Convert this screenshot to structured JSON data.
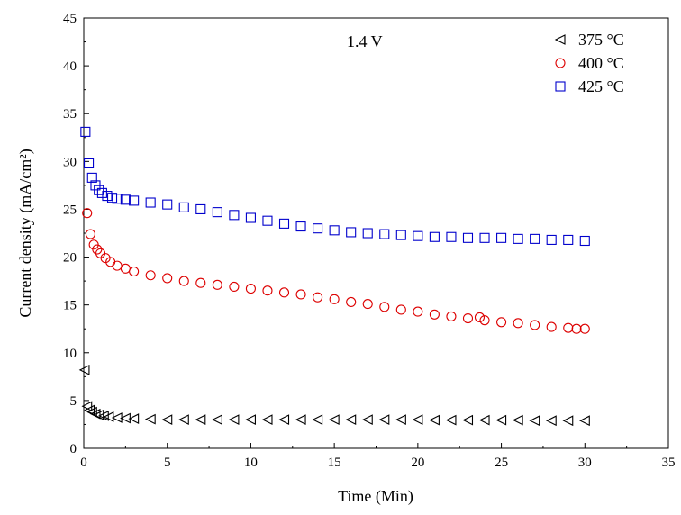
{
  "chart_data": {
    "type": "scatter",
    "title": "",
    "annotation": "1.4 V",
    "xlabel": "Time (Min)",
    "ylabel": "Current density (mA/cm²)",
    "xlim": [
      0,
      35
    ],
    "ylim": [
      0,
      45
    ],
    "x_ticks": [
      0,
      5,
      10,
      15,
      20,
      25,
      30,
      35
    ],
    "y_ticks": [
      0,
      5,
      10,
      15,
      20,
      25,
      30,
      35,
      40,
      45
    ],
    "grid": false,
    "legend_position": "top-right",
    "series": [
      {
        "name": "375 °C",
        "marker": "triangle-left",
        "color": "#000000",
        "points": [
          [
            0.05,
            8.2
          ],
          [
            0.2,
            4.4
          ],
          [
            0.35,
            4.0
          ],
          [
            0.5,
            3.8
          ],
          [
            0.7,
            3.6
          ],
          [
            0.9,
            3.5
          ],
          [
            1.2,
            3.4
          ],
          [
            1.5,
            3.3
          ],
          [
            2,
            3.2
          ],
          [
            2.5,
            3.15
          ],
          [
            3,
            3.1
          ],
          [
            4,
            3.05
          ],
          [
            5,
            3.0
          ],
          [
            6,
            3.0
          ],
          [
            7,
            3.0
          ],
          [
            8,
            3.0
          ],
          [
            9,
            3.0
          ],
          [
            10,
            3.0
          ],
          [
            11,
            3.0
          ],
          [
            12,
            3.0
          ],
          [
            13,
            3.0
          ],
          [
            14,
            3.0
          ],
          [
            15,
            3.0
          ],
          [
            16,
            3.0
          ],
          [
            17,
            3.0
          ],
          [
            18,
            3.0
          ],
          [
            19,
            3.0
          ],
          [
            20,
            3.0
          ],
          [
            21,
            2.95
          ],
          [
            22,
            2.95
          ],
          [
            23,
            2.95
          ],
          [
            24,
            2.95
          ],
          [
            25,
            2.95
          ],
          [
            26,
            2.95
          ],
          [
            27,
            2.9
          ],
          [
            28,
            2.9
          ],
          [
            29,
            2.9
          ],
          [
            30,
            2.9
          ]
        ]
      },
      {
        "name": "400 °C",
        "marker": "circle",
        "color": "#dd0000",
        "points": [
          [
            0.2,
            24.6
          ],
          [
            0.4,
            22.4
          ],
          [
            0.6,
            21.3
          ],
          [
            0.8,
            20.8
          ],
          [
            1.0,
            20.4
          ],
          [
            1.3,
            19.9
          ],
          [
            1.6,
            19.5
          ],
          [
            2.0,
            19.1
          ],
          [
            2.5,
            18.8
          ],
          [
            3,
            18.5
          ],
          [
            4,
            18.1
          ],
          [
            5,
            17.8
          ],
          [
            6,
            17.5
          ],
          [
            7,
            17.3
          ],
          [
            8,
            17.1
          ],
          [
            9,
            16.9
          ],
          [
            10,
            16.7
          ],
          [
            11,
            16.5
          ],
          [
            12,
            16.3
          ],
          [
            13,
            16.1
          ],
          [
            14,
            15.8
          ],
          [
            15,
            15.6
          ],
          [
            16,
            15.3
          ],
          [
            17,
            15.1
          ],
          [
            18,
            14.8
          ],
          [
            19,
            14.5
          ],
          [
            20,
            14.3
          ],
          [
            21,
            14.0
          ],
          [
            22,
            13.8
          ],
          [
            23,
            13.6
          ],
          [
            23.7,
            13.7
          ],
          [
            24,
            13.4
          ],
          [
            25,
            13.2
          ],
          [
            26,
            13.1
          ],
          [
            27,
            12.9
          ],
          [
            28,
            12.7
          ],
          [
            29,
            12.6
          ],
          [
            29.5,
            12.5
          ],
          [
            30,
            12.5
          ]
        ]
      },
      {
        "name": "425 °C",
        "marker": "square",
        "color": "#0000cc",
        "points": [
          [
            0.1,
            33.1
          ],
          [
            0.3,
            29.8
          ],
          [
            0.5,
            28.3
          ],
          [
            0.7,
            27.5
          ],
          [
            0.9,
            27.0
          ],
          [
            1.1,
            26.7
          ],
          [
            1.4,
            26.4
          ],
          [
            1.7,
            26.2
          ],
          [
            2,
            26.1
          ],
          [
            2.5,
            26.0
          ],
          [
            3,
            25.9
          ],
          [
            4,
            25.7
          ],
          [
            5,
            25.5
          ],
          [
            6,
            25.2
          ],
          [
            7,
            25.0
          ],
          [
            8,
            24.7
          ],
          [
            9,
            24.4
          ],
          [
            10,
            24.1
          ],
          [
            11,
            23.8
          ],
          [
            12,
            23.5
          ],
          [
            13,
            23.2
          ],
          [
            14,
            23.0
          ],
          [
            15,
            22.8
          ],
          [
            16,
            22.6
          ],
          [
            17,
            22.5
          ],
          [
            18,
            22.4
          ],
          [
            19,
            22.3
          ],
          [
            20,
            22.2
          ],
          [
            21,
            22.1
          ],
          [
            22,
            22.1
          ],
          [
            23,
            22.0
          ],
          [
            24,
            22.0
          ],
          [
            25,
            22.0
          ],
          [
            26,
            21.9
          ],
          [
            27,
            21.9
          ],
          [
            28,
            21.8
          ],
          [
            29,
            21.8
          ],
          [
            30,
            21.7
          ]
        ]
      }
    ]
  }
}
